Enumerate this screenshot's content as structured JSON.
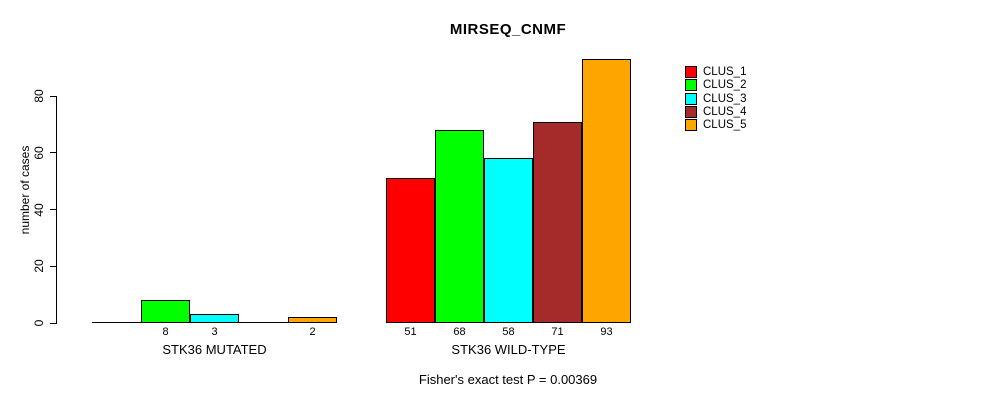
{
  "chart_data": {
    "type": "bar",
    "title": "MIRSEQ_CNMF",
    "xlabel": "",
    "ylabel": "number of cases",
    "annotation": "Fisher's exact test P = 0.00369",
    "categories": [
      "STK36 MUTATED",
      "STK36 WILD-TYPE"
    ],
    "series": [
      {
        "name": "CLUS_1",
        "color": "#ff0000",
        "values": [
          0,
          51
        ]
      },
      {
        "name": "CLUS_2",
        "color": "#00ff00",
        "values": [
          8,
          68
        ]
      },
      {
        "name": "CLUS_3",
        "color": "#00ffff",
        "values": [
          3,
          58
        ]
      },
      {
        "name": "CLUS_4",
        "color": "#a52a2a",
        "values": [
          0,
          71
        ]
      },
      {
        "name": "CLUS_5",
        "color": "#ffa500",
        "values": [
          2,
          93
        ]
      }
    ],
    "bar_value_labels": {
      "STK36 MUTATED": [
        null,
        8,
        3,
        null,
        2
      ],
      "STK36 WILD-TYPE": [
        51,
        68,
        58,
        71,
        93
      ]
    },
    "y_ticks": [
      0,
      20,
      40,
      60,
      80
    ],
    "ylim": [
      0,
      93
    ],
    "grid": false,
    "legend_position": "right",
    "legend": [
      {
        "label": "CLUS_1",
        "color": "#ff0000"
      },
      {
        "label": "CLUS_2",
        "color": "#00ff00"
      },
      {
        "label": "CLUS_3",
        "color": "#00ffff"
      },
      {
        "label": "CLUS_4",
        "color": "#a52a2a"
      },
      {
        "label": "CLUS_5",
        "color": "#ffa500"
      }
    ]
  }
}
